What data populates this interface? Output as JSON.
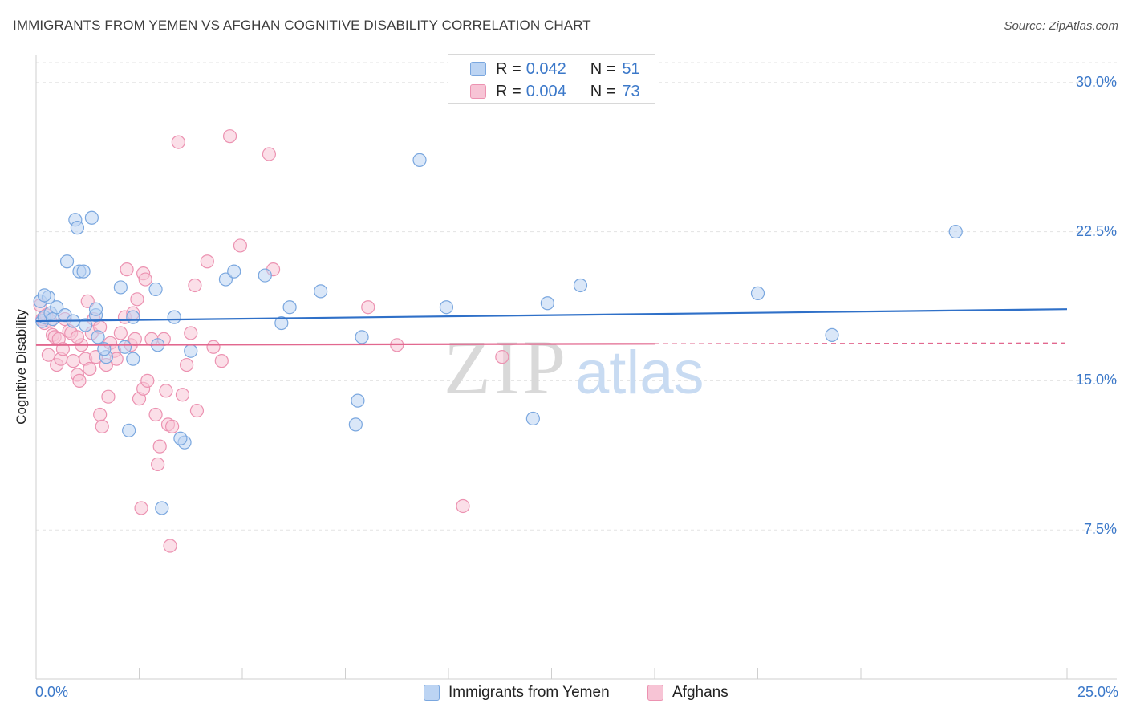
{
  "header": {
    "title": "IMMIGRANTS FROM YEMEN VS AFGHAN COGNITIVE DISABILITY CORRELATION CHART",
    "source": "Source: ZipAtlas.com"
  },
  "watermark": {
    "zip": "ZIP",
    "atlas": "atlas"
  },
  "legend_box": {
    "rows": [
      {
        "r_label": "R =",
        "r_value": "0.042",
        "n_label": "N =",
        "n_value": "51"
      },
      {
        "r_label": "R =",
        "r_value": "0.004",
        "n_label": "N =",
        "n_value": "73"
      }
    ]
  },
  "colors": {
    "blue_fill": "#bcd4f3",
    "blue_stroke": "#7aa7df",
    "blue_line": "#2f70c8",
    "pink_fill": "#f7c4d5",
    "pink_stroke": "#ec92b1",
    "pink_line": "#e2688f",
    "axis_text": "#3b78c9",
    "grid": "#e3e3e3"
  },
  "chart_data": {
    "type": "scatter",
    "title": "IMMIGRANTS FROM YEMEN VS AFGHAN COGNITIVE DISABILITY CORRELATION CHART",
    "xlabel": "",
    "ylabel": "Cognitive Disability",
    "xlim": [
      0,
      25
    ],
    "ylim": [
      0,
      31
    ],
    "x_tick_labels": [
      "0.0%",
      "25.0%"
    ],
    "y_ticks": [
      7.5,
      15.0,
      22.5,
      30.0
    ],
    "y_tick_labels": [
      "7.5%",
      "15.0%",
      "22.5%",
      "30.0%"
    ],
    "grid": "horizontal dashed",
    "legend_position": "top-center and bottom",
    "series": [
      {
        "name": "Immigrants from Yemen",
        "R": 0.042,
        "N": 51,
        "trend": {
          "x": [
            0,
            25
          ],
          "y": [
            18.0,
            18.6
          ]
        },
        "points": [
          [
            0.1,
            19.0
          ],
          [
            0.15,
            18.0
          ],
          [
            0.2,
            18.2
          ],
          [
            0.3,
            19.2
          ],
          [
            0.35,
            18.4
          ],
          [
            0.4,
            18.1
          ],
          [
            0.5,
            18.7
          ],
          [
            0.7,
            18.3
          ],
          [
            0.9,
            18.0
          ],
          [
            1.2,
            17.8
          ],
          [
            1.45,
            18.3
          ],
          [
            0.75,
            21.0
          ],
          [
            1.05,
            20.5
          ],
          [
            1.15,
            20.5
          ],
          [
            0.95,
            23.1
          ],
          [
            1.35,
            23.2
          ],
          [
            1.0,
            22.7
          ],
          [
            1.45,
            18.6
          ],
          [
            1.5,
            17.2
          ],
          [
            1.7,
            16.2
          ],
          [
            2.05,
            19.7
          ],
          [
            2.35,
            18.2
          ],
          [
            2.15,
            16.7
          ],
          [
            2.35,
            16.1
          ],
          [
            2.25,
            12.5
          ],
          [
            2.9,
            19.6
          ],
          [
            2.95,
            16.8
          ],
          [
            3.35,
            18.2
          ],
          [
            3.6,
            11.9
          ],
          [
            3.5,
            12.1
          ],
          [
            3.05,
            8.6
          ],
          [
            3.75,
            16.5
          ],
          [
            4.6,
            20.1
          ],
          [
            4.8,
            20.5
          ],
          [
            5.55,
            20.3
          ],
          [
            5.95,
            17.9
          ],
          [
            6.15,
            18.7
          ],
          [
            6.9,
            19.5
          ],
          [
            7.75,
            12.8
          ],
          [
            7.8,
            14.0
          ],
          [
            7.9,
            17.2
          ],
          [
            9.3,
            26.1
          ],
          [
            9.95,
            18.7
          ],
          [
            12.05,
            13.1
          ],
          [
            12.4,
            18.9
          ],
          [
            13.2,
            19.8
          ],
          [
            17.5,
            19.4
          ],
          [
            19.3,
            17.3
          ],
          [
            22.3,
            22.5
          ],
          [
            0.2,
            19.3
          ],
          [
            1.65,
            16.6
          ]
        ]
      },
      {
        "name": "Afghans",
        "R": 0.004,
        "N": 73,
        "trend": {
          "x": [
            0,
            25
          ],
          "y": [
            16.8,
            16.9
          ]
        },
        "points": [
          [
            0.1,
            18.8
          ],
          [
            0.15,
            18.1
          ],
          [
            0.2,
            17.9
          ],
          [
            0.25,
            18.3
          ],
          [
            0.3,
            16.3
          ],
          [
            0.4,
            17.3
          ],
          [
            0.45,
            17.2
          ],
          [
            0.5,
            15.8
          ],
          [
            0.55,
            17.1
          ],
          [
            0.6,
            16.1
          ],
          [
            0.7,
            18.1
          ],
          [
            0.8,
            17.5
          ],
          [
            0.85,
            17.4
          ],
          [
            0.9,
            16.0
          ],
          [
            1.0,
            15.3
          ],
          [
            1.05,
            15.0
          ],
          [
            1.1,
            16.8
          ],
          [
            1.2,
            16.1
          ],
          [
            1.25,
            19.0
          ],
          [
            1.3,
            15.6
          ],
          [
            1.35,
            17.4
          ],
          [
            1.4,
            18.1
          ],
          [
            1.45,
            16.2
          ],
          [
            1.55,
            17.7
          ],
          [
            1.55,
            13.3
          ],
          [
            1.6,
            12.7
          ],
          [
            1.7,
            15.8
          ],
          [
            1.75,
            14.2
          ],
          [
            1.8,
            16.9
          ],
          [
            1.9,
            16.5
          ],
          [
            1.95,
            16.1
          ],
          [
            2.05,
            17.4
          ],
          [
            2.15,
            18.2
          ],
          [
            2.2,
            20.6
          ],
          [
            2.3,
            16.8
          ],
          [
            2.4,
            17.1
          ],
          [
            2.45,
            19.1
          ],
          [
            2.5,
            14.1
          ],
          [
            2.6,
            20.4
          ],
          [
            2.6,
            14.6
          ],
          [
            2.7,
            15.0
          ],
          [
            2.8,
            17.1
          ],
          [
            2.9,
            13.3
          ],
          [
            2.95,
            10.8
          ],
          [
            3.0,
            11.7
          ],
          [
            3.1,
            17.1
          ],
          [
            3.15,
            14.5
          ],
          [
            3.2,
            12.8
          ],
          [
            3.3,
            12.7
          ],
          [
            3.45,
            27.0
          ],
          [
            3.55,
            14.3
          ],
          [
            3.65,
            15.8
          ],
          [
            3.75,
            17.4
          ],
          [
            3.85,
            19.8
          ],
          [
            3.9,
            13.5
          ],
          [
            4.15,
            21.0
          ],
          [
            4.3,
            16.7
          ],
          [
            4.5,
            16.0
          ],
          [
            4.7,
            27.3
          ],
          [
            4.95,
            21.8
          ],
          [
            5.65,
            26.4
          ],
          [
            5.75,
            20.6
          ],
          [
            8.05,
            18.7
          ],
          [
            8.75,
            16.8
          ],
          [
            10.35,
            8.7
          ],
          [
            11.3,
            16.2
          ],
          [
            2.55,
            8.6
          ],
          [
            3.25,
            6.7
          ],
          [
            2.65,
            20.1
          ],
          [
            0.65,
            16.6
          ],
          [
            1.0,
            17.2
          ],
          [
            0.35,
            18.0
          ],
          [
            2.35,
            18.4
          ]
        ]
      }
    ]
  },
  "bottom_legend": [
    "Immigrants from Yemen",
    "Afghans"
  ]
}
